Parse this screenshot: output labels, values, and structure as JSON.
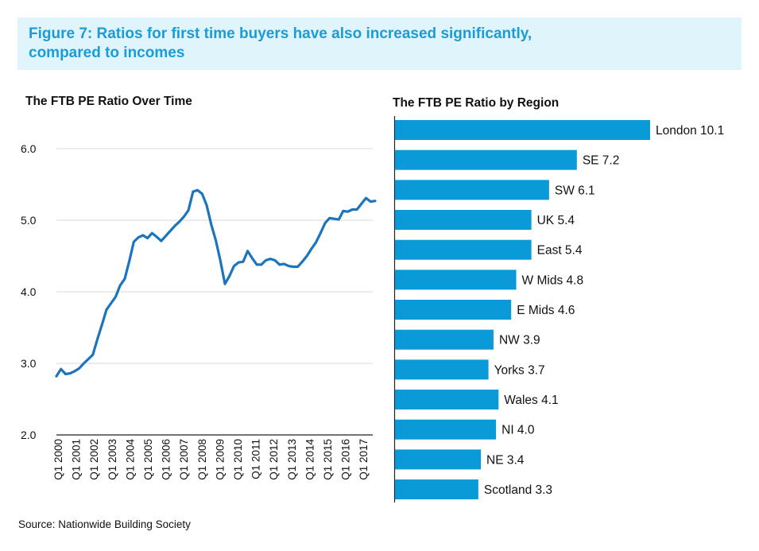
{
  "figure": {
    "title_line1": "Figure 7: Ratios for first time buyers have also increased significantly,",
    "title_line2": "compared to incomes",
    "source": "Source: Nationwide Building Society"
  },
  "colors": {
    "accent": "#1a9cd8",
    "banner_bg": "#e0f4fb",
    "line": "#1c75bc",
    "bar": "#0a9ad8"
  },
  "chart_data": [
    {
      "type": "line",
      "title": "The FTB PE Ratio Over Time",
      "ylim": [
        2.0,
        6.0
      ],
      "yticks": [
        "2.0",
        "3.0",
        "4.0",
        "5.0",
        "6.0"
      ],
      "x_ticks": [
        "Q1 2000",
        "Q1 2001",
        "Q1 2002",
        "Q1 2003",
        "Q1 2004",
        "Q1 2005",
        "Q1 2006",
        "Q1 2007",
        "Q1 2008",
        "Q1 2009",
        "Q1 2010",
        "Q1 2011",
        "Q1 2012",
        "Q1 2013",
        "Q1 2014",
        "Q1 2015",
        "Q1 2016",
        "Q1 2017"
      ],
      "grid": true,
      "series": [
        {
          "x": [
            2000.0,
            2000.25,
            2000.5,
            2000.75,
            2001.0,
            2001.25,
            2001.5,
            2001.75,
            2002.0,
            2002.25,
            2002.5,
            2002.75,
            2003.0,
            2003.25,
            2003.5,
            2003.75,
            2004.0,
            2004.25,
            2004.5,
            2004.75,
            2005.0,
            2005.25,
            2005.5,
            2005.75,
            2006.0,
            2006.25,
            2006.5,
            2006.75,
            2007.0,
            2007.25,
            2007.5,
            2007.75,
            2008.0,
            2008.25,
            2008.5,
            2008.75,
            2009.0,
            2009.25,
            2009.5,
            2009.75,
            2010.0,
            2010.25,
            2010.5,
            2010.75,
            2011.0,
            2011.25,
            2011.5,
            2011.75,
            2012.0,
            2012.25,
            2012.5,
            2012.75,
            2013.0,
            2013.25,
            2013.5,
            2013.75,
            2014.0,
            2014.25,
            2014.5,
            2014.75,
            2015.0,
            2015.25,
            2015.5,
            2015.75,
            2016.0,
            2016.25,
            2016.5,
            2016.75,
            2017.0,
            2017.25,
            2017.5
          ],
          "y": [
            2.82,
            2.92,
            2.85,
            2.86,
            2.89,
            2.93,
            3.0,
            3.06,
            3.12,
            3.34,
            3.54,
            3.75,
            3.84,
            3.93,
            4.09,
            4.18,
            4.43,
            4.7,
            4.76,
            4.79,
            4.75,
            4.82,
            4.77,
            4.71,
            4.78,
            4.85,
            4.92,
            4.98,
            5.05,
            5.14,
            5.4,
            5.42,
            5.37,
            5.21,
            4.94,
            4.72,
            4.44,
            4.11,
            4.22,
            4.36,
            4.41,
            4.42,
            4.57,
            4.47,
            4.38,
            4.38,
            4.44,
            4.46,
            4.44,
            4.38,
            4.39,
            4.36,
            4.35,
            4.35,
            4.42,
            4.5,
            4.6,
            4.69,
            4.82,
            4.96,
            5.03,
            5.02,
            5.01,
            5.13,
            5.12,
            5.15,
            5.15,
            5.23,
            5.31,
            5.26,
            5.27
          ]
        }
      ]
    },
    {
      "type": "bar",
      "orientation": "horizontal",
      "title": "The FTB PE Ratio by Region",
      "categories": [
        "London",
        "SE",
        "SW",
        "UK",
        "East",
        "W Mids",
        "E Mids",
        "NW",
        "Yorks",
        "Wales",
        "NI",
        "NE",
        "Scotland"
      ],
      "values": [
        10.1,
        7.2,
        6.1,
        5.4,
        5.4,
        4.8,
        4.6,
        3.9,
        3.7,
        4.1,
        4.0,
        3.4,
        3.3
      ],
      "labels": [
        "London 10.1",
        "SE 7.2",
        "SW 6.1",
        "UK 5.4",
        "East 5.4",
        "W Mids 4.8",
        "E Mids 4.6",
        "NW 3.9",
        "Yorks 3.7",
        "Wales 4.1",
        "NI 4.0",
        "NE 3.4",
        "Scotland 3.3"
      ],
      "grid": false
    }
  ]
}
